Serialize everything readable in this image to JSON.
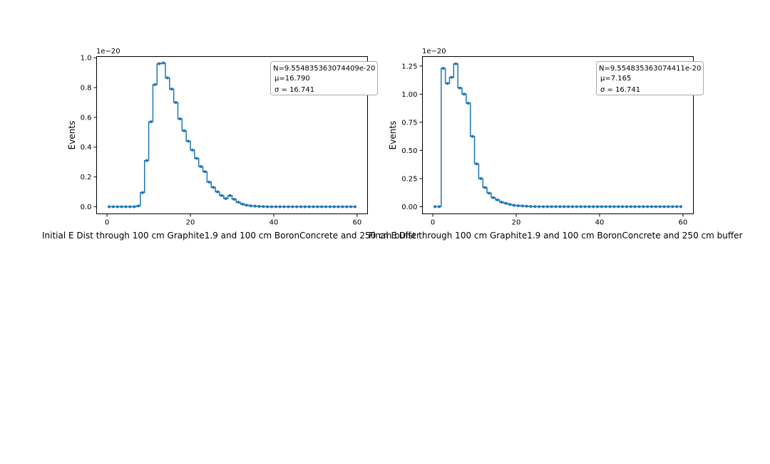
{
  "colors": {
    "series": "#1f77b4",
    "axis": "#000000",
    "legend_border": "#aaaaaa",
    "background": "#ffffff"
  },
  "chart_data": [
    {
      "type": "line",
      "drawstyle": "steps-mid",
      "marker": "dot",
      "title": "",
      "xlabel": "Initial E Dist through 100 cm Graphite1.9 and 100 cm BoronConcrete and 250 cm buffer",
      "ylabel": "Events",
      "y_offset_label": "1e−20",
      "xlim": [
        -2.5,
        62.5
      ],
      "ylim": [
        -0.048,
        1.008
      ],
      "xticks": [
        0,
        20,
        40,
        60
      ],
      "xtick_labels": [
        "0",
        "20",
        "40",
        "60"
      ],
      "yticks": [
        0.0,
        0.2,
        0.4,
        0.6,
        0.8,
        1.0
      ],
      "ytick_labels": [
        "0.0",
        "0.2",
        "0.4",
        "0.6",
        "0.8",
        "1.0"
      ],
      "legend_position": "top-right",
      "annotation_lines": [
        "N=9.554835363074409e-20",
        "μ=16.790",
        "σ = 16.741"
      ],
      "x": [
        0.5,
        1.5,
        2.5,
        3.5,
        4.5,
        5.5,
        6.5,
        7.5,
        8.5,
        9.5,
        10.5,
        11.5,
        12.5,
        13.5,
        14.5,
        15.5,
        16.5,
        17.5,
        18.5,
        19.5,
        20.5,
        21.5,
        22.5,
        23.5,
        24.5,
        25.5,
        26.5,
        27.5,
        28.5,
        29.5,
        30.5,
        31.5,
        32.5,
        33.5,
        34.5,
        35.5,
        36.5,
        37.5,
        38.5,
        39.5,
        40.5,
        41.5,
        42.5,
        43.5,
        44.5,
        45.5,
        46.5,
        47.5,
        48.5,
        49.5,
        50.5,
        51.5,
        52.5,
        53.5,
        54.5,
        55.5,
        56.5,
        57.5,
        58.5,
        59.5
      ],
      "y": [
        0,
        0,
        0,
        0,
        0,
        0,
        0,
        0.005,
        0.095,
        0.31,
        0.57,
        0.82,
        0.96,
        0.965,
        0.865,
        0.79,
        0.7,
        0.59,
        0.51,
        0.44,
        0.38,
        0.325,
        0.27,
        0.235,
        0.165,
        0.13,
        0.1,
        0.075,
        0.055,
        0.075,
        0.05,
        0.03,
        0.018,
        0.01,
        0.006,
        0.004,
        0.002,
        0.001,
        0,
        0,
        0,
        0,
        0,
        0,
        0,
        0,
        0,
        0,
        0,
        0,
        0,
        0,
        0,
        0,
        0,
        0,
        0,
        0,
        0,
        0
      ]
    },
    {
      "type": "line",
      "drawstyle": "steps-mid",
      "marker": "dot",
      "title": "",
      "xlabel": "Final E Dist through 100 cm Graphite1.9 and 100 cm BoronConcrete and 250 cm buffer",
      "ylabel": "Events",
      "y_offset_label": "1e−20",
      "xlim": [
        -2.5,
        62.5
      ],
      "ylim": [
        -0.064,
        1.334
      ],
      "xticks": [
        0,
        20,
        40,
        60
      ],
      "xtick_labels": [
        "0",
        "20",
        "40",
        "60"
      ],
      "yticks": [
        0.0,
        0.25,
        0.5,
        0.75,
        1.0,
        1.25
      ],
      "ytick_labels": [
        "0.00",
        "0.25",
        "0.50",
        "0.75",
        "1.00",
        "1.25"
      ],
      "legend_position": "top-right",
      "annotation_lines": [
        "N=9.554835363074411e-20",
        "μ=7.165",
        "σ = 16.741"
      ],
      "x": [
        0.5,
        1.5,
        2.5,
        3.5,
        4.5,
        5.5,
        6.5,
        7.5,
        8.5,
        9.5,
        10.5,
        11.5,
        12.5,
        13.5,
        14.5,
        15.5,
        16.5,
        17.5,
        18.5,
        19.5,
        20.5,
        21.5,
        22.5,
        23.5,
        24.5,
        25.5,
        26.5,
        27.5,
        28.5,
        29.5,
        30.5,
        31.5,
        32.5,
        33.5,
        34.5,
        35.5,
        36.5,
        37.5,
        38.5,
        39.5,
        40.5,
        41.5,
        42.5,
        43.5,
        44.5,
        45.5,
        46.5,
        47.5,
        48.5,
        49.5,
        50.5,
        51.5,
        52.5,
        53.5,
        54.5,
        55.5,
        56.5,
        57.5,
        58.5,
        59.5
      ],
      "y": [
        0,
        0,
        1.23,
        1.095,
        1.15,
        1.27,
        1.055,
        1.0,
        0.92,
        0.625,
        0.38,
        0.25,
        0.17,
        0.12,
        0.08,
        0.06,
        0.04,
        0.03,
        0.02,
        0.012,
        0.008,
        0.006,
        0.004,
        0.002,
        0.001,
        0,
        0,
        0,
        0,
        0,
        0,
        0,
        0,
        0,
        0,
        0,
        0,
        0,
        0,
        0,
        0,
        0,
        0,
        0,
        0,
        0,
        0,
        0,
        0,
        0,
        0,
        0,
        0,
        0,
        0,
        0,
        0,
        0,
        0,
        0
      ]
    }
  ]
}
